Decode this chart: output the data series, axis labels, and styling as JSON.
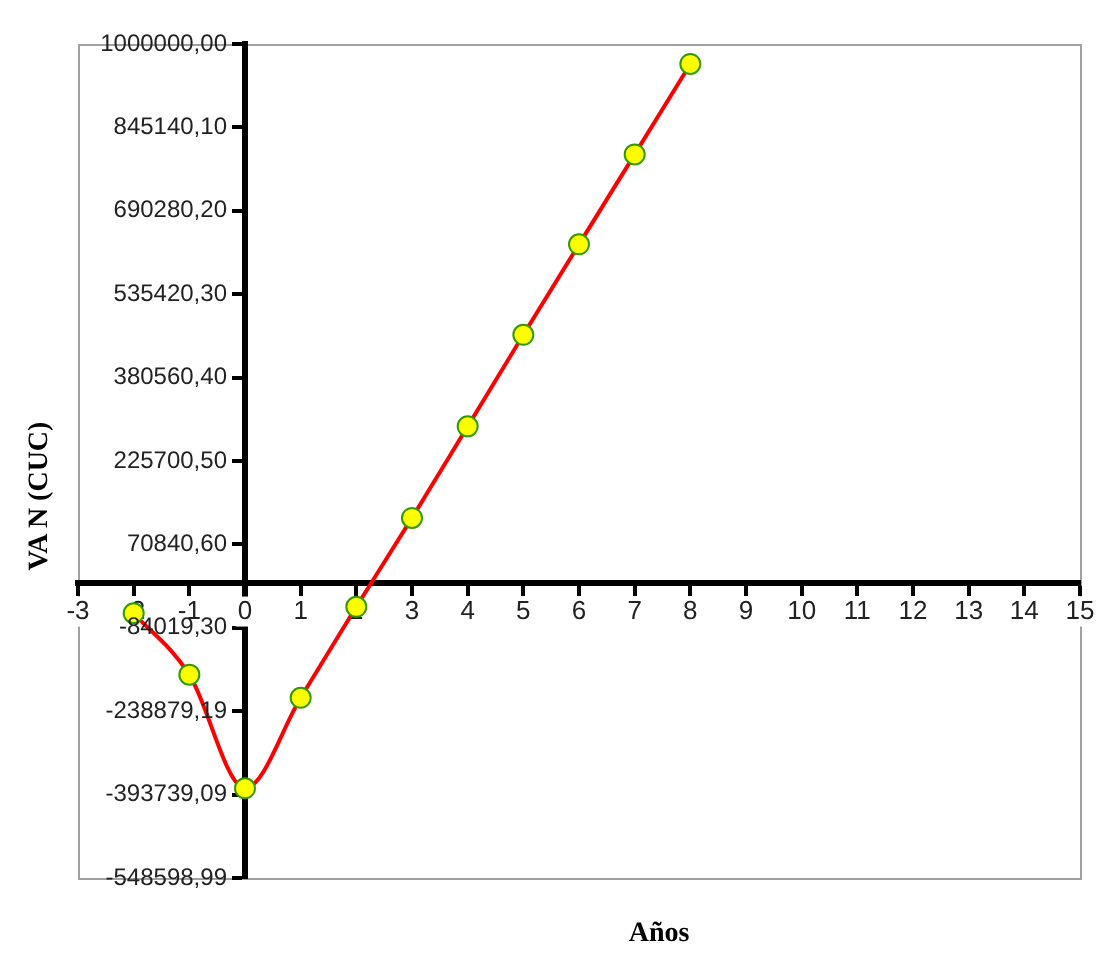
{
  "chart_data": {
    "type": "line",
    "xlabel": "Años",
    "ylabel": "VA N (CUC)",
    "x": [
      -2,
      -1,
      0,
      1,
      2,
      3,
      4,
      5,
      6,
      7,
      8
    ],
    "series": [
      {
        "color": "#ff0000",
        "values": [
          -57000,
          -171000,
          -382000,
          -214000,
          -45000,
          120000,
          290000,
          460000,
          628000,
          795000,
          963000
        ]
      }
    ],
    "xlim": [
      -3,
      15
    ],
    "xticks": [
      -3,
      -2,
      -1,
      0,
      1,
      2,
      3,
      4,
      5,
      6,
      7,
      8,
      9,
      10,
      11,
      12,
      13,
      14,
      15
    ],
    "ylim": [
      -548598.99,
      1000000
    ],
    "yticks": [
      {
        "value": 1000000,
        "label": "1000000,00"
      },
      {
        "value": 845140.1,
        "label": "845140,10"
      },
      {
        "value": 690280.2,
        "label": "690280,20"
      },
      {
        "value": 535420.3,
        "label": "535420,30"
      },
      {
        "value": 380560.4,
        "label": "380560,40"
      },
      {
        "value": 225700.5,
        "label": "225700,50"
      },
      {
        "value": 70840.6,
        "label": "70840,60"
      },
      {
        "value": -84019.3,
        "label": "-84019,30"
      },
      {
        "value": -238879.19,
        "label": "-238879,19"
      },
      {
        "value": -393739.09,
        "label": "-393739,09"
      },
      {
        "value": -548598.99,
        "label": "-548598,99"
      }
    ],
    "grid": false,
    "legend": false,
    "marker": "circle",
    "line_style": "solid"
  }
}
